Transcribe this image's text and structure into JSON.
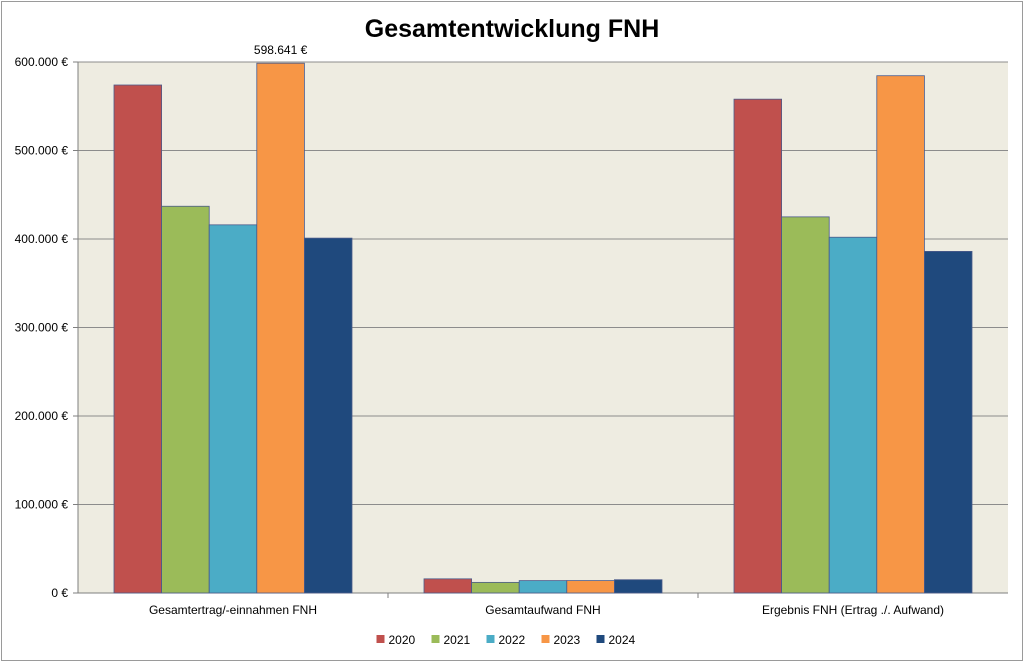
{
  "chart_data": {
    "type": "bar",
    "title": "Gesamtentwicklung FNH",
    "categories": [
      "Gesamtertrag/-einnahmen FNH",
      "Gesamtaufwand FNH",
      "Ergebnis FNH (Ertrag ./. Aufwand)"
    ],
    "series": [
      {
        "name": "2020",
        "color": "#c0504d",
        "values": [
          574000,
          16000,
          558000
        ]
      },
      {
        "name": "2021",
        "color": "#9bbb59",
        "values": [
          437000,
          12000,
          425000
        ]
      },
      {
        "name": "2022",
        "color": "#4bacc6",
        "values": [
          416000,
          14000,
          402000
        ]
      },
      {
        "name": "2023",
        "color": "#f79646",
        "values": [
          598641,
          14000,
          584500
        ]
      },
      {
        "name": "2024",
        "color": "#1f497d",
        "values": [
          401000,
          15000,
          386000
        ]
      }
    ],
    "ylim": [
      0,
      600000
    ],
    "yticks": [
      0,
      100000,
      200000,
      300000,
      400000,
      500000,
      600000
    ],
    "ytick_labels": [
      "0 €",
      "100.000 €",
      "200.000 €",
      "300.000 €",
      "400.000 €",
      "500.000 €",
      "600.000 €"
    ],
    "data_labels": [
      {
        "series": "2023",
        "category": "Gesamtertrag/-einnahmen FNH",
        "text": "598.641 €"
      }
    ],
    "xlabel": "",
    "ylabel": "",
    "grid": true,
    "legend": "bottom",
    "plot_background": "#eeece1"
  }
}
